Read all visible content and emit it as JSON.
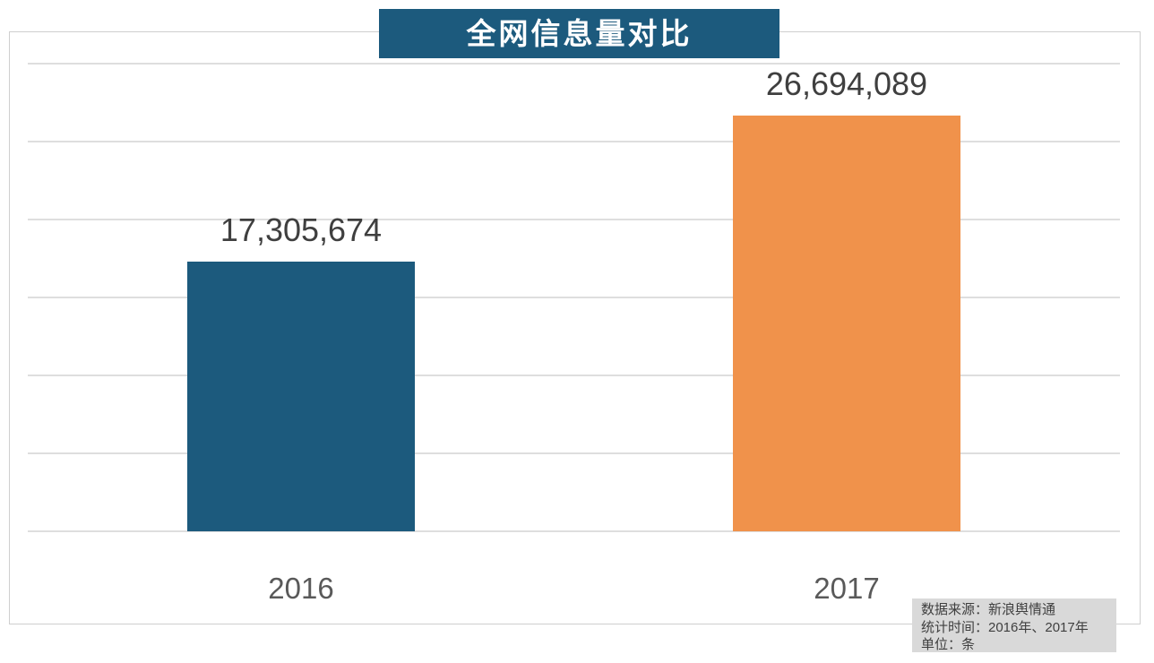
{
  "chart_data": {
    "type": "bar",
    "title": "全网信息量对比",
    "categories": [
      "2016",
      "2017"
    ],
    "values": [
      17305674,
      26694089
    ],
    "value_labels": [
      "17,305,674",
      "26,694,089"
    ],
    "bar_colors": [
      "#1C5A7D",
      "#F0924B"
    ],
    "xlabel": "",
    "ylabel": "",
    "ylim": [
      0,
      30000000
    ],
    "gridline_interval": 5000000,
    "grid": true,
    "legend": false
  },
  "source_box": {
    "line1": "数据来源：新浪舆情通",
    "line2": "统计时间：2016年、2017年",
    "line3": "单位：条"
  },
  "colors": {
    "header_bg": "#1C5A7D",
    "bar_2016": "#1C5A7D",
    "bar_2017": "#F0924B",
    "gridline": "#DEDEDE",
    "plot_border": "#CFCFCF",
    "value_text": "#3F3F3F",
    "axis_text": "#595959",
    "source_bg": "#D9D9D9",
    "title_text": "#FFFFFF"
  }
}
